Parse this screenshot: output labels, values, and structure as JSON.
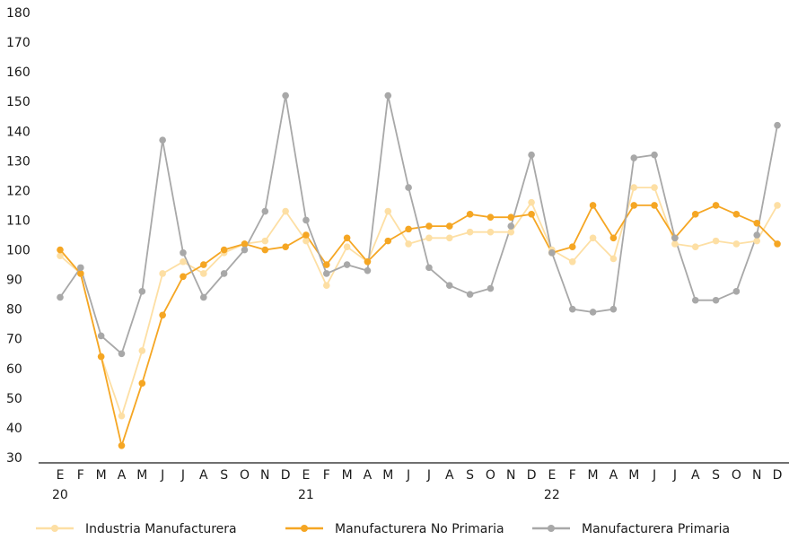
{
  "chart_data": {
    "type": "line",
    "title": "",
    "xlabel": "",
    "ylabel": "",
    "ylim": [
      30,
      180
    ],
    "yticks": [
      30,
      40,
      50,
      60,
      70,
      80,
      90,
      100,
      110,
      120,
      130,
      140,
      150,
      160,
      170,
      180
    ],
    "grid": false,
    "legend": "bottom",
    "categories": [
      "E",
      "F",
      "M",
      "A",
      "M",
      "J",
      "J",
      "A",
      "S",
      "O",
      "N",
      "D",
      "E",
      "F",
      "M",
      "A",
      "M",
      "J",
      "J",
      "A",
      "S",
      "O",
      "N",
      "D",
      "E",
      "F",
      "M",
      "A",
      "M",
      "J",
      "J",
      "A",
      "S",
      "O",
      "N",
      "D"
    ],
    "year_labels": [
      {
        "index": 0,
        "label": "20"
      },
      {
        "index": 12,
        "label": "21"
      },
      {
        "index": 24,
        "label": "22"
      }
    ],
    "series": [
      {
        "name": "Industria Manufacturera",
        "color": "#FDDFA4",
        "values": [
          98,
          92,
          64,
          44,
          66,
          92,
          96,
          92,
          99,
          102,
          103,
          113,
          103,
          88,
          101,
          96,
          113,
          102,
          104,
          104,
          106,
          106,
          106,
          116,
          100,
          96,
          104,
          97,
          121,
          121,
          102,
          101,
          103,
          102,
          103,
          115
        ]
      },
      {
        "name": "Manufacturera No Primaria",
        "color": "#F5A623",
        "values": [
          100,
          92,
          64,
          34,
          55,
          78,
          91,
          95,
          100,
          102,
          100,
          101,
          105,
          95,
          104,
          96,
          103,
          107,
          108,
          108,
          112,
          111,
          111,
          112,
          99,
          101,
          115,
          104,
          115,
          115,
          104,
          112,
          115,
          112,
          109,
          102
        ]
      },
      {
        "name": "Manufacturera Primaria",
        "color": "#A8A8A8",
        "values": [
          84,
          94,
          71,
          65,
          86,
          137,
          99,
          84,
          92,
          100,
          113,
          152,
          110,
          92,
          95,
          93,
          152,
          121,
          94,
          88,
          85,
          87,
          108,
          132,
          99,
          80,
          79,
          80,
          131,
          132,
          104,
          83,
          83,
          86,
          105,
          142
        ]
      }
    ]
  }
}
